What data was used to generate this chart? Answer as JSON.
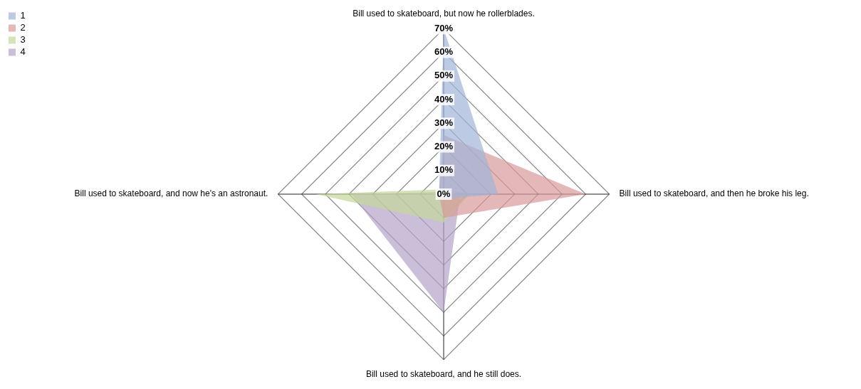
{
  "chart_data": {
    "type": "radar",
    "categories": [
      "Bill used to skateboard, but now he rollerblades.",
      "Bill used to skateboard, and then he broke his leg.",
      "Bill used to skateboard, and he still does.",
      "Bill used to skateboard, and now he's an astronaut."
    ],
    "series": [
      {
        "name": "1",
        "color": "#a0b4d8",
        "values": [
          70,
          23,
          2,
          2
        ]
      },
      {
        "name": "2",
        "color": "#d99a9a",
        "values": [
          25,
          60,
          10,
          2
        ]
      },
      {
        "name": "3",
        "color": "#c4d79b",
        "values": [
          2,
          11,
          12,
          54
        ]
      },
      {
        "name": "4",
        "color": "#b3a2c7",
        "values": [
          1,
          7,
          50,
          39
        ]
      }
    ],
    "ylim": [
      0,
      70
    ],
    "yticks": [
      {
        "value": 0,
        "label": "0%"
      },
      {
        "value": 10,
        "label": "10%"
      },
      {
        "value": 20,
        "label": "20%"
      },
      {
        "value": 30,
        "label": "30%"
      },
      {
        "value": 40,
        "label": "40%"
      },
      {
        "value": 50,
        "label": "50%"
      },
      {
        "value": 60,
        "label": "60%"
      },
      {
        "value": 70,
        "label": "70%"
      }
    ],
    "grid": true,
    "legend": "top left",
    "marker": "none"
  }
}
